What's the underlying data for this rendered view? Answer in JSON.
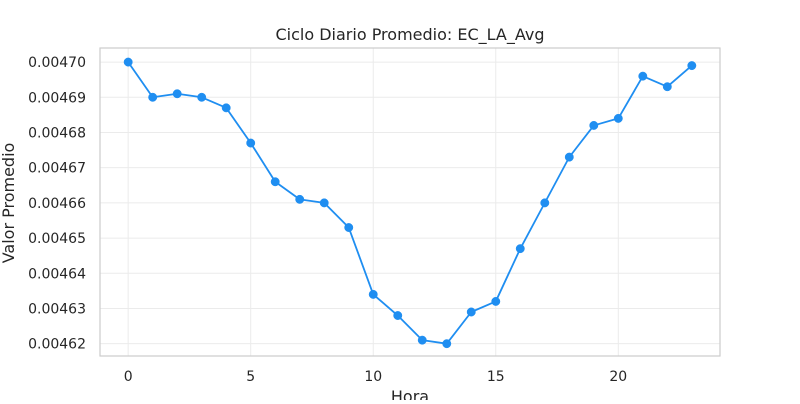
{
  "chart_data": {
    "type": "line",
    "title": "Ciclo Diario Promedio: EC_LA_Avg",
    "xlabel": "Hora",
    "ylabel": "Valor Promedio",
    "x": [
      0,
      1,
      2,
      3,
      4,
      5,
      6,
      7,
      8,
      9,
      10,
      11,
      12,
      13,
      14,
      15,
      16,
      17,
      18,
      19,
      20,
      21,
      22,
      23
    ],
    "series": [
      {
        "values": [
          0.0047,
          0.00469,
          0.004691,
          0.00469,
          0.004687,
          0.004677,
          0.004666,
          0.004661,
          0.00466,
          0.004653,
          0.004634,
          0.004628,
          0.004621,
          0.00462,
          0.004629,
          0.004632,
          0.004647,
          0.00466,
          0.004673,
          0.004682,
          0.004684,
          0.004696,
          0.004693,
          0.004699
        ],
        "color": "#1f8ef1"
      }
    ],
    "xticks": [
      0,
      5,
      10,
      15,
      20
    ],
    "xtick_labels": [
      "0",
      "5",
      "10",
      "15",
      "20"
    ],
    "yticks": [
      0.00462,
      0.00463,
      0.00464,
      0.00465,
      0.00466,
      0.00467,
      0.00468,
      0.00469,
      0.0047
    ],
    "ytick_labels": [
      "0.00462",
      "0.00463",
      "0.00464",
      "0.00465",
      "0.00466",
      "0.00467",
      "0.00468",
      "0.00469",
      "0.00470"
    ],
    "xlim": [
      -1.15,
      24.15
    ],
    "ylim": [
      0.0046165,
      0.004704
    ],
    "grid": true,
    "grid_color": "#ebebeb",
    "axes_color": "#cccccc"
  }
}
